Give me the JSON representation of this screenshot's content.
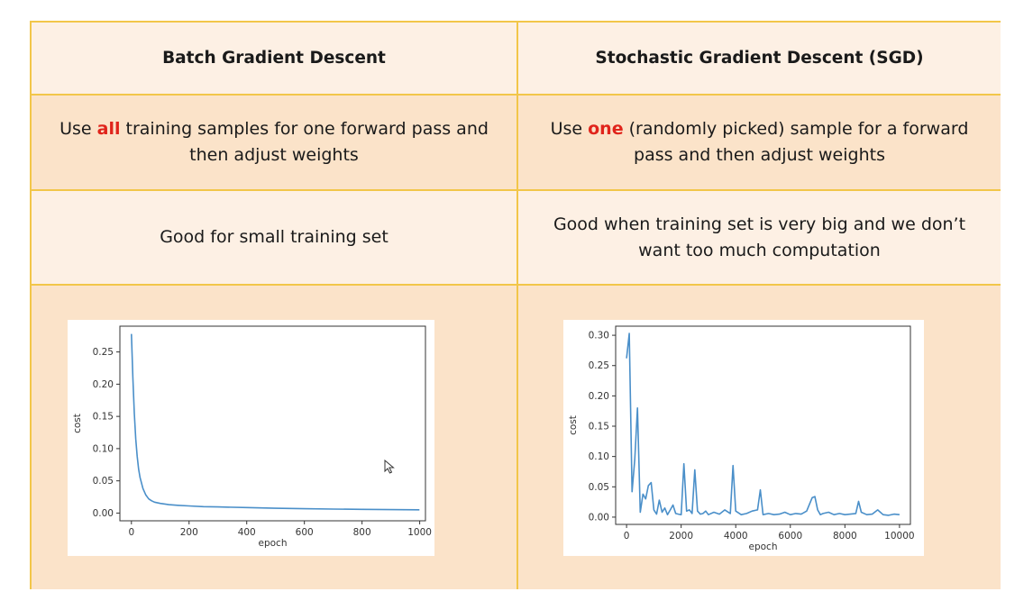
{
  "table": {
    "left_header": "Batch Gradient Descent",
    "right_header": "Stochastic Gradient Descent (SGD)",
    "row2_left": {
      "before": "Use ",
      "highlight": "all",
      "after": " training samples for one forward pass and then adjust weights"
    },
    "row2_right": {
      "before": "Use ",
      "highlight": "one",
      "after": " (randomly picked) sample for a forward pass and then adjust weights"
    },
    "row3_left": "Good for small training set",
    "row3_right": "Good when training set is very big and we don’t want too much computation"
  },
  "colors": {
    "border": "#f2c649",
    "highlight": "#e0241b",
    "line": "#4a8fc9"
  },
  "chart_data": [
    {
      "type": "line",
      "xlabel": "epoch",
      "ylabel": "cost",
      "xlim": [
        -40,
        1020
      ],
      "ylim": [
        -0.012,
        0.29
      ],
      "xticks": [
        0,
        200,
        400,
        600,
        800,
        1000
      ],
      "yticks": [
        0.0,
        0.05,
        0.1,
        0.15,
        0.2,
        0.25
      ],
      "xtick_labels": [
        "0",
        "200",
        "400",
        "600",
        "800",
        "1000"
      ],
      "ytick_labels": [
        "0.00",
        "0.05",
        "0.10",
        "0.15",
        "0.20",
        "0.25"
      ],
      "grid": false,
      "series": [
        {
          "x": [
            0,
            5,
            10,
            15,
            20,
            25,
            30,
            40,
            50,
            60,
            70,
            80,
            100,
            130,
            160,
            200,
            250,
            300,
            400,
            500,
            600,
            700,
            800,
            900,
            999
          ],
          "values": [
            0.278,
            0.21,
            0.155,
            0.115,
            0.088,
            0.068,
            0.055,
            0.038,
            0.028,
            0.022,
            0.019,
            0.017,
            0.015,
            0.013,
            0.012,
            0.011,
            0.01,
            0.0095,
            0.0085,
            0.0075,
            0.0068,
            0.0062,
            0.0057,
            0.0053,
            0.005
          ]
        }
      ]
    },
    {
      "type": "line",
      "xlabel": "epoch",
      "ylabel": "cost",
      "xlim": [
        -400,
        10400
      ],
      "ylim": [
        -0.012,
        0.315
      ],
      "xticks": [
        0,
        2000,
        4000,
        6000,
        8000,
        10000
      ],
      "yticks": [
        0.0,
        0.05,
        0.1,
        0.15,
        0.2,
        0.25,
        0.3
      ],
      "xtick_labels": [
        "0",
        "2000",
        "4000",
        "6000",
        "8000",
        "10000"
      ],
      "ytick_labels": [
        "0.00",
        "0.05",
        "0.10",
        "0.15",
        "0.20",
        "0.25",
        "0.30"
      ],
      "grid": false,
      "series": [
        {
          "x": [
            0,
            100,
            200,
            300,
            400,
            500,
            600,
            700,
            800,
            900,
            1000,
            1100,
            1200,
            1300,
            1400,
            1500,
            1600,
            1700,
            1800,
            1900,
            2000,
            2100,
            2200,
            2300,
            2400,
            2500,
            2600,
            2700,
            2800,
            2900,
            3000,
            3200,
            3400,
            3600,
            3800,
            3900,
            4000,
            4200,
            4400,
            4600,
            4800,
            4900,
            5000,
            5200,
            5400,
            5600,
            5800,
            6000,
            6200,
            6400,
            6600,
            6800,
            6900,
            7000,
            7100,
            7200,
            7400,
            7600,
            7800,
            8000,
            8200,
            8400,
            8500,
            8600,
            8800,
            9000,
            9200,
            9400,
            9600,
            9800,
            10000
          ],
          "values": [
            0.262,
            0.303,
            0.042,
            0.095,
            0.18,
            0.008,
            0.038,
            0.03,
            0.052,
            0.057,
            0.012,
            0.005,
            0.028,
            0.008,
            0.015,
            0.004,
            0.012,
            0.02,
            0.006,
            0.005,
            0.004,
            0.088,
            0.01,
            0.012,
            0.006,
            0.078,
            0.01,
            0.005,
            0.006,
            0.01,
            0.004,
            0.008,
            0.005,
            0.012,
            0.006,
            0.085,
            0.01,
            0.004,
            0.006,
            0.01,
            0.012,
            0.045,
            0.004,
            0.006,
            0.004,
            0.005,
            0.008,
            0.004,
            0.006,
            0.005,
            0.01,
            0.032,
            0.034,
            0.012,
            0.004,
            0.006,
            0.008,
            0.004,
            0.006,
            0.004,
            0.005,
            0.006,
            0.026,
            0.008,
            0.004,
            0.005,
            0.012,
            0.004,
            0.003,
            0.005,
            0.004
          ]
        }
      ]
    }
  ]
}
